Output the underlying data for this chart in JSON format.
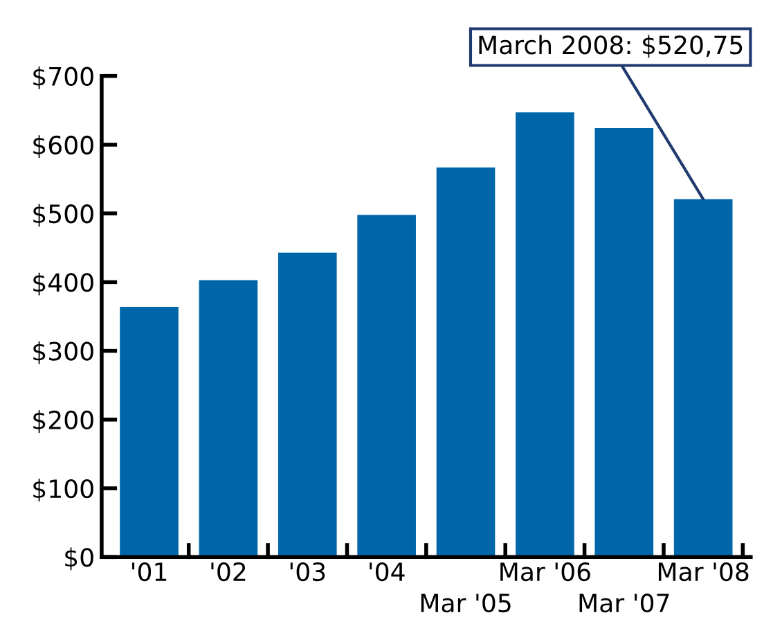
{
  "chart_data": {
    "type": "bar",
    "categories": [
      "'01",
      "'02",
      "'03",
      "'04",
      "Mar '05",
      "Mar '06",
      "Mar '07",
      "Mar '08"
    ],
    "values": [
      364,
      403,
      443,
      498,
      567,
      647,
      624,
      520.75
    ],
    "color": "#0066aa",
    "ylim": [
      0,
      700
    ],
    "yticks": [
      {
        "value": 0,
        "label": "$0"
      },
      {
        "value": 100,
        "label": "$100"
      },
      {
        "value": 200,
        "label": "$200"
      },
      {
        "value": 300,
        "label": "$300"
      },
      {
        "value": 400,
        "label": "$400"
      },
      {
        "value": 500,
        "label": "$500"
      },
      {
        "value": 600,
        "label": "$600"
      },
      {
        "value": 700,
        "label": "$700"
      }
    ],
    "grid": false,
    "legend": false,
    "annotations": [
      {
        "text": "March 2008: $520,75",
        "x": "Mar '08",
        "y": 520.75
      }
    ]
  }
}
